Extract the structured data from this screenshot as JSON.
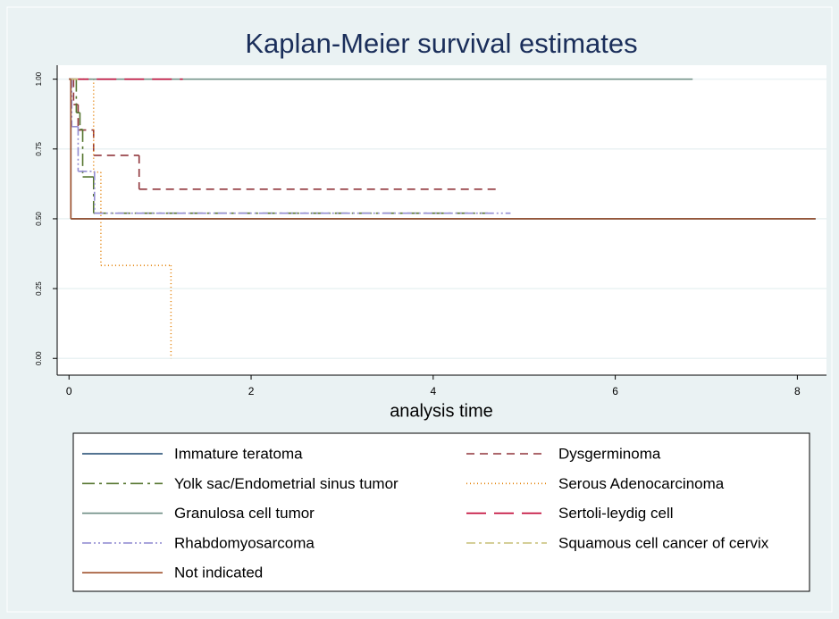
{
  "chart_data": {
    "type": "step",
    "title": "Kaplan-Meier survival estimates",
    "x_label": "analysis time",
    "xlim": [
      -0.13,
      8.32
    ],
    "ylim": [
      -0.06,
      1.05
    ],
    "xticks": [
      0,
      2,
      4,
      6,
      8
    ],
    "yticks": [
      {
        "value": 0,
        "label": "0.00"
      },
      {
        "value": 0.25,
        "label": "0.25"
      },
      {
        "value": 0.5,
        "label": "0.50"
      },
      {
        "value": 0.75,
        "label": "0.75"
      },
      {
        "value": 1,
        "label": "1.00"
      }
    ],
    "grid": true,
    "series": [
      {
        "name": "Immature teratoma",
        "color": "#1a476f",
        "dash": "none",
        "x": [
          0,
          0.02,
          8.2
        ],
        "values": [
          1,
          0.5,
          0.5
        ]
      },
      {
        "name": "Dysgerminoma",
        "color": "#90353b",
        "dash": "9,6",
        "x": [
          0,
          0.05,
          0.1,
          0.27,
          0.77,
          4.7
        ],
        "values": [
          1,
          0.909,
          0.818,
          0.727,
          0.606,
          0.606
        ]
      },
      {
        "name": "Yolk sac/Endometrial sinus tumor",
        "color": "#55752f",
        "dash": "14,5,3,5",
        "x": [
          0,
          0.08,
          0.12,
          0.15,
          0.27,
          4.6
        ],
        "values": [
          1,
          0.88,
          0.82,
          0.65,
          0.52,
          0.52
        ]
      },
      {
        "name": "Serous Adenocarcinoma",
        "color": "#e37e00",
        "dash": "1,3",
        "x": [
          0,
          0.27,
          0.35,
          1.12,
          1.12
        ],
        "values": [
          1,
          0.667,
          0.333,
          0,
          0
        ]
      },
      {
        "name": "Granulosa cell tumor",
        "color": "#6e8e84",
        "dash": "none",
        "x": [
          0,
          6.85
        ],
        "values": [
          1,
          1
        ]
      },
      {
        "name": "Sertoli-leydig cell",
        "color": "#c10534",
        "dash": "22,9",
        "x": [
          0,
          1.25
        ],
        "values": [
          1,
          1
        ]
      },
      {
        "name": "Rhabdomyosarcoma",
        "color": "#938dd2",
        "dash": "10,3,2,3,2,3",
        "x": [
          0,
          0.03,
          0.1,
          0.28,
          4.85
        ],
        "values": [
          1,
          0.83,
          0.67,
          0.52,
          0.52
        ]
      },
      {
        "name": "Squamous cell cancer of cervix",
        "color": "#cac27e",
        "dash": "10,4,3,4",
        "x": [
          0,
          0.1
        ],
        "values": [
          1,
          1
        ]
      },
      {
        "name": "Not indicated",
        "color": "#a0522d",
        "dash": "none",
        "x": [
          0,
          0.02,
          8.2
        ],
        "values": [
          1,
          0.5,
          0.5
        ]
      }
    ]
  }
}
